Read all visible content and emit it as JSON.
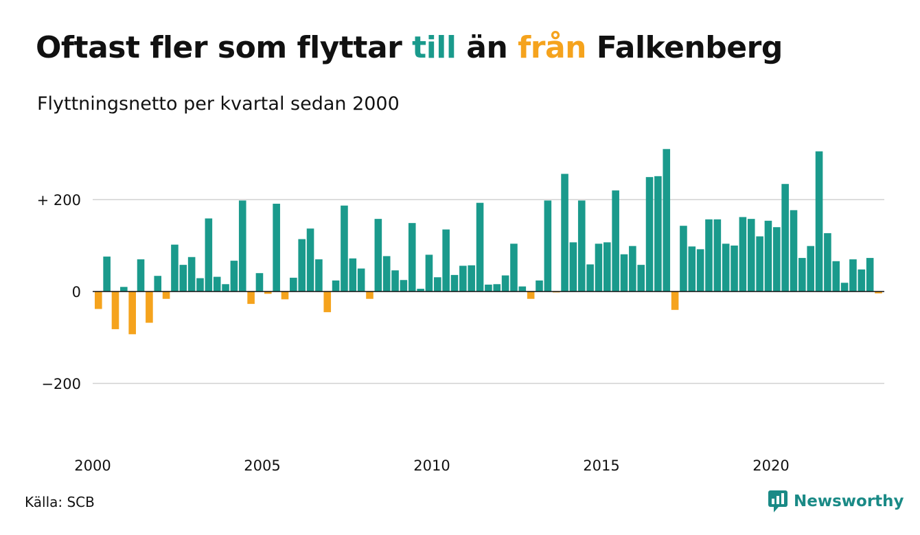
{
  "title": {
    "part1": "Oftast fler som flyttar ",
    "word_till": "till",
    "part2": " än ",
    "word_fran": "från",
    "part3": " Falkenberg"
  },
  "subtitle": "Flyttningsnetto per kvartal sedan 2000",
  "source": "Källa: SCB",
  "brand": {
    "name": "Newsworthy",
    "icon": "bar-chart-bubble-icon"
  },
  "colors": {
    "positive": "#1a9a8c",
    "negative": "#f5a31d",
    "grid": "#dddddd",
    "zero_line": "#111111",
    "brand": "#1a8a86"
  },
  "chart_data": {
    "type": "bar",
    "title": "Oftast fler som flyttar till än från Falkenberg",
    "subtitle": "Flyttningsnetto per kvartal sedan 2000",
    "xlabel": "",
    "ylabel": "",
    "ylim": [
      -310,
      310
    ],
    "y_ticks": [
      {
        "value": 200,
        "label": "+ 200"
      },
      {
        "value": 0,
        "label": "0"
      },
      {
        "value": -200,
        "label": "−200"
      }
    ],
    "x_ticks": [
      {
        "value": 2000,
        "label": "2000"
      },
      {
        "value": 2005,
        "label": "2005"
      },
      {
        "value": 2010,
        "label": "2010"
      },
      {
        "value": 2015,
        "label": "2015"
      },
      {
        "value": 2020,
        "label": "2020"
      }
    ],
    "x_start": 2000,
    "period": "quarter",
    "grid": true,
    "values": [
      -38,
      76,
      -82,
      10,
      -93,
      70,
      -68,
      34,
      -16,
      102,
      58,
      75,
      29,
      159,
      32,
      16,
      67,
      198,
      -27,
      40,
      -5,
      191,
      -17,
      30,
      114,
      137,
      70,
      -45,
      24,
      187,
      72,
      50,
      -16,
      158,
      77,
      46,
      25,
      149,
      6,
      80,
      31,
      135,
      36,
      56,
      57,
      193,
      15,
      16,
      35,
      104,
      11,
      -16,
      24,
      198,
      -2,
      256,
      107,
      198,
      59,
      104,
      107,
      220,
      81,
      99,
      58,
      249,
      251,
      310,
      -40,
      143,
      98,
      92,
      157,
      157,
      104,
      100,
      162,
      158,
      120,
      154,
      140,
      234,
      177,
      73,
      99,
      305,
      127,
      66,
      19,
      70,
      48,
      73,
      -4
    ]
  }
}
